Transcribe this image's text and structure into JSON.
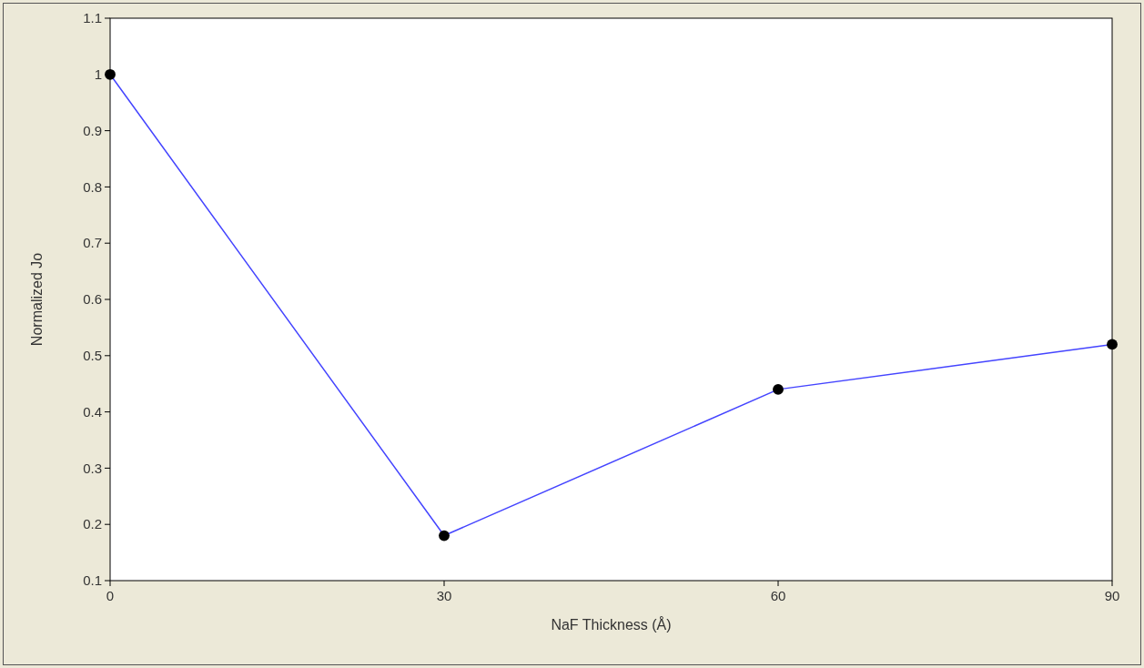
{
  "chart_data": {
    "type": "line",
    "xlabel": "NaF Thickness (Å)",
    "ylabel": "Normalized Jo",
    "x": [
      0,
      30,
      60,
      90
    ],
    "series": [
      {
        "color": "#4444ff",
        "values": [
          1.0,
          0.18,
          0.44,
          0.52
        ]
      }
    ],
    "xlim": [
      0,
      90
    ],
    "xticks": [
      0,
      30,
      60,
      90
    ],
    "ylim": [
      0.1,
      1.1
    ],
    "yticks": [
      0.1,
      0.2,
      0.3,
      0.4,
      0.5,
      0.6,
      0.7,
      0.8,
      0.9,
      1,
      1.1
    ],
    "marker": "circle",
    "line_style": "solid"
  }
}
